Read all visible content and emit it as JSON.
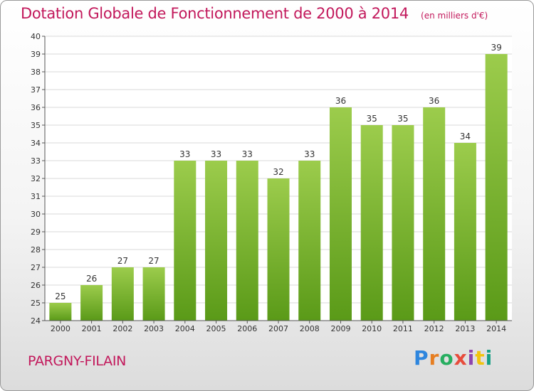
{
  "title": "Dotation Globale de Fonctionnement de 2000 à 2014",
  "subtitle": "(en milliers d'€)",
  "commune": "PARGNY-FILAIN",
  "logo_text": "Proxiti",
  "colors": {
    "title": "#c2185b",
    "bar_top": "#9ccc4c",
    "bar_bottom": "#5a9a18",
    "grid": "#d8d8d8",
    "axis": "#555555"
  },
  "chart_data": {
    "type": "bar",
    "categories": [
      "2000",
      "2001",
      "2002",
      "2003",
      "2004",
      "2005",
      "2006",
      "2007",
      "2008",
      "2009",
      "2010",
      "2011",
      "2012",
      "2013",
      "2014"
    ],
    "values": [
      25,
      26,
      27,
      27,
      33,
      33,
      33,
      32,
      33,
      36,
      35,
      35,
      36,
      34,
      39
    ],
    "ylim": [
      24,
      40
    ],
    "yticks": [
      24,
      25,
      26,
      27,
      28,
      29,
      30,
      31,
      32,
      33,
      34,
      35,
      36,
      37,
      38,
      39,
      40
    ],
    "grid": true,
    "legend": "none",
    "data_labels": true
  }
}
